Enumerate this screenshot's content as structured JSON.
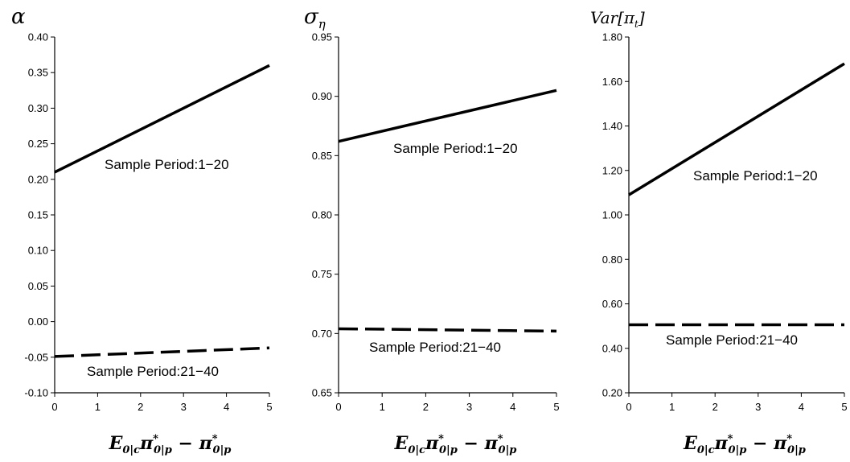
{
  "chart_data": [
    {
      "type": "line",
      "title": "α",
      "xlabel": "E0|cπ*0|p − π*0|p",
      "ylabel": "",
      "xlim": [
        0,
        5
      ],
      "ylim": [
        -0.1,
        0.4
      ],
      "x_ticks": [
        "0",
        "1",
        "2",
        "3",
        "4",
        "5"
      ],
      "y_ticks": [
        "-0.10",
        "-0.05",
        "0.00",
        "0.05",
        "0.10",
        "0.15",
        "0.20",
        "0.25",
        "0.30",
        "0.35",
        "0.40"
      ],
      "series": [
        {
          "x": [
            0,
            5
          ],
          "values": [
            0.21,
            0.36
          ],
          "style": "solid"
        },
        {
          "x": [
            0,
            5
          ],
          "values": [
            -0.049,
            -0.037
          ],
          "style": "dashed"
        }
      ],
      "annotations": [
        {
          "text": "Sample Period:1−20",
          "near_series": 0
        },
        {
          "text": "Sample Period:21−40",
          "near_series": 1
        }
      ]
    },
    {
      "type": "line",
      "title": "ση",
      "xlabel": "E0|cπ*0|p − π*0|p",
      "ylabel": "",
      "xlim": [
        0,
        5
      ],
      "ylim": [
        0.65,
        0.95
      ],
      "x_ticks": [
        "0",
        "1",
        "2",
        "3",
        "4",
        "5"
      ],
      "y_ticks": [
        "0.65",
        "0.70",
        "0.75",
        "0.80",
        "0.85",
        "0.90",
        "0.95"
      ],
      "series": [
        {
          "x": [
            0,
            5
          ],
          "values": [
            0.862,
            0.905
          ],
          "style": "solid"
        },
        {
          "x": [
            0,
            5
          ],
          "values": [
            0.704,
            0.702
          ],
          "style": "dashed"
        }
      ],
      "annotations": [
        {
          "text": "Sample Period:1−20",
          "near_series": 0
        },
        {
          "text": "Sample Period:21−40",
          "near_series": 1
        }
      ]
    },
    {
      "type": "line",
      "title": "Var[πt]",
      "xlabel": "E0|cπ*0|p − π*0|p",
      "ylabel": "",
      "xlim": [
        0,
        5
      ],
      "ylim": [
        0.2,
        1.8
      ],
      "x_ticks": [
        "0",
        "1",
        "2",
        "3",
        "4",
        "5"
      ],
      "y_ticks": [
        "0.20",
        "0.40",
        "0.60",
        "0.80",
        "1.00",
        "1.20",
        "1.40",
        "1.60",
        "1.80"
      ],
      "series": [
        {
          "x": [
            0,
            5
          ],
          "values": [
            1.09,
            1.68
          ],
          "style": "solid"
        },
        {
          "x": [
            0,
            5
          ],
          "values": [
            0.506,
            0.506
          ],
          "style": "dashed"
        }
      ],
      "annotations": [
        {
          "text": "Sample Period:1−20",
          "near_series": 0
        },
        {
          "text": "Sample Period:21−40",
          "near_series": 1
        }
      ]
    }
  ]
}
